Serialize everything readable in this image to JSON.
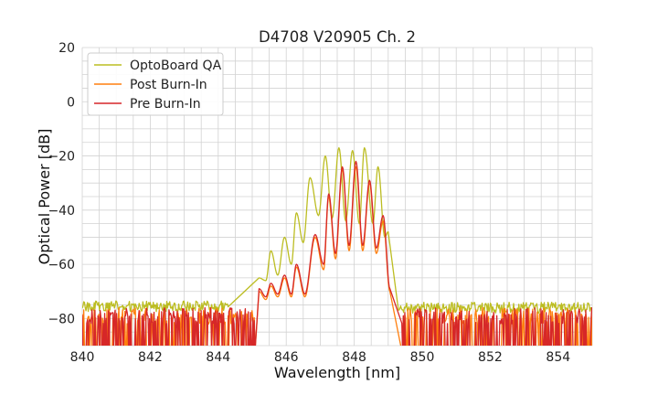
{
  "chart_data": {
    "type": "line",
    "title": "D4708 V20905 Ch. 2",
    "xlabel": "Wavelength [nm]",
    "ylabel": "Optical Power [dB]",
    "xlim": [
      840,
      855
    ],
    "ylim": [
      -90,
      20
    ],
    "x_ticks": [
      "840",
      "842",
      "844",
      "846",
      "848",
      "850",
      "852",
      "854"
    ],
    "y_ticks": [
      "20",
      "0",
      "−20",
      "−40",
      "−60",
      "−80"
    ],
    "x_minor_step": 0.5,
    "y_minor_step": 5,
    "grid": true,
    "legend_position": "top-left",
    "noise_floor": {
      "OptoBoard QA": {
        "base": -75.5,
        "span": 4,
        "left_end": 844.3,
        "right_end": 849.3
      },
      "Post Burn-In": {
        "base": -76,
        "bottom": -90,
        "left_end": 845.1,
        "right_end": 849.4
      },
      "Pre Burn-In": {
        "base": -76,
        "bottom": -90,
        "left_end": 845.1,
        "right_end": 849.4
      }
    },
    "series": [
      {
        "name": "OptoBoard QA",
        "color": "#bcbd22",
        "peaks": [
          {
            "x": 845.2,
            "y": -65
          },
          {
            "x": 845.55,
            "y": -55
          },
          {
            "x": 845.95,
            "y": -50
          },
          {
            "x": 846.3,
            "y": -41
          },
          {
            "x": 846.7,
            "y": -28
          },
          {
            "x": 847.15,
            "y": -20
          },
          {
            "x": 847.55,
            "y": -17
          },
          {
            "x": 847.95,
            "y": -18
          },
          {
            "x": 848.3,
            "y": -17
          },
          {
            "x": 848.7,
            "y": -24
          },
          {
            "x": 849.0,
            "y": -48
          }
        ],
        "valleys": [
          {
            "x": 845.4,
            "y": -66
          },
          {
            "x": 845.75,
            "y": -64
          },
          {
            "x": 846.15,
            "y": -60
          },
          {
            "x": 846.5,
            "y": -52
          },
          {
            "x": 846.95,
            "y": -42
          },
          {
            "x": 847.35,
            "y": -43
          },
          {
            "x": 847.75,
            "y": -44
          },
          {
            "x": 848.15,
            "y": -45
          },
          {
            "x": 848.55,
            "y": -45
          },
          {
            "x": 848.9,
            "y": -50
          }
        ]
      },
      {
        "name": "Post Burn-In",
        "color": "#ff7f0e",
        "peaks": [
          {
            "x": 845.2,
            "y": -70
          },
          {
            "x": 845.55,
            "y": -68
          },
          {
            "x": 845.95,
            "y": -65
          },
          {
            "x": 846.3,
            "y": -61
          },
          {
            "x": 846.85,
            "y": -50
          },
          {
            "x": 847.25,
            "y": -35
          },
          {
            "x": 847.65,
            "y": -25
          },
          {
            "x": 848.05,
            "y": -24
          },
          {
            "x": 848.45,
            "y": -30
          },
          {
            "x": 848.85,
            "y": -44
          }
        ],
        "valleys": [
          {
            "x": 845.4,
            "y": -73
          },
          {
            "x": 845.75,
            "y": -72
          },
          {
            "x": 846.15,
            "y": -72
          },
          {
            "x": 846.55,
            "y": -72
          },
          {
            "x": 847.1,
            "y": -62
          },
          {
            "x": 847.45,
            "y": -58
          },
          {
            "x": 847.85,
            "y": -55
          },
          {
            "x": 848.25,
            "y": -55
          },
          {
            "x": 848.65,
            "y": -56
          },
          {
            "x": 849.05,
            "y": -70
          }
        ]
      },
      {
        "name": "Pre Burn-In",
        "color": "#d62728",
        "peaks": [
          {
            "x": 845.2,
            "y": -69
          },
          {
            "x": 845.55,
            "y": -67
          },
          {
            "x": 845.95,
            "y": -64
          },
          {
            "x": 846.3,
            "y": -60
          },
          {
            "x": 846.85,
            "y": -49
          },
          {
            "x": 847.25,
            "y": -34
          },
          {
            "x": 847.65,
            "y": -24
          },
          {
            "x": 848.05,
            "y": -22
          },
          {
            "x": 848.45,
            "y": -29
          },
          {
            "x": 848.85,
            "y": -42
          }
        ],
        "valleys": [
          {
            "x": 845.4,
            "y": -72
          },
          {
            "x": 845.75,
            "y": -71
          },
          {
            "x": 846.15,
            "y": -71
          },
          {
            "x": 846.55,
            "y": -71
          },
          {
            "x": 847.1,
            "y": -60
          },
          {
            "x": 847.45,
            "y": -56
          },
          {
            "x": 847.85,
            "y": -53
          },
          {
            "x": 848.25,
            "y": -53
          },
          {
            "x": 848.65,
            "y": -54
          },
          {
            "x": 849.05,
            "y": -69
          }
        ]
      }
    ]
  }
}
